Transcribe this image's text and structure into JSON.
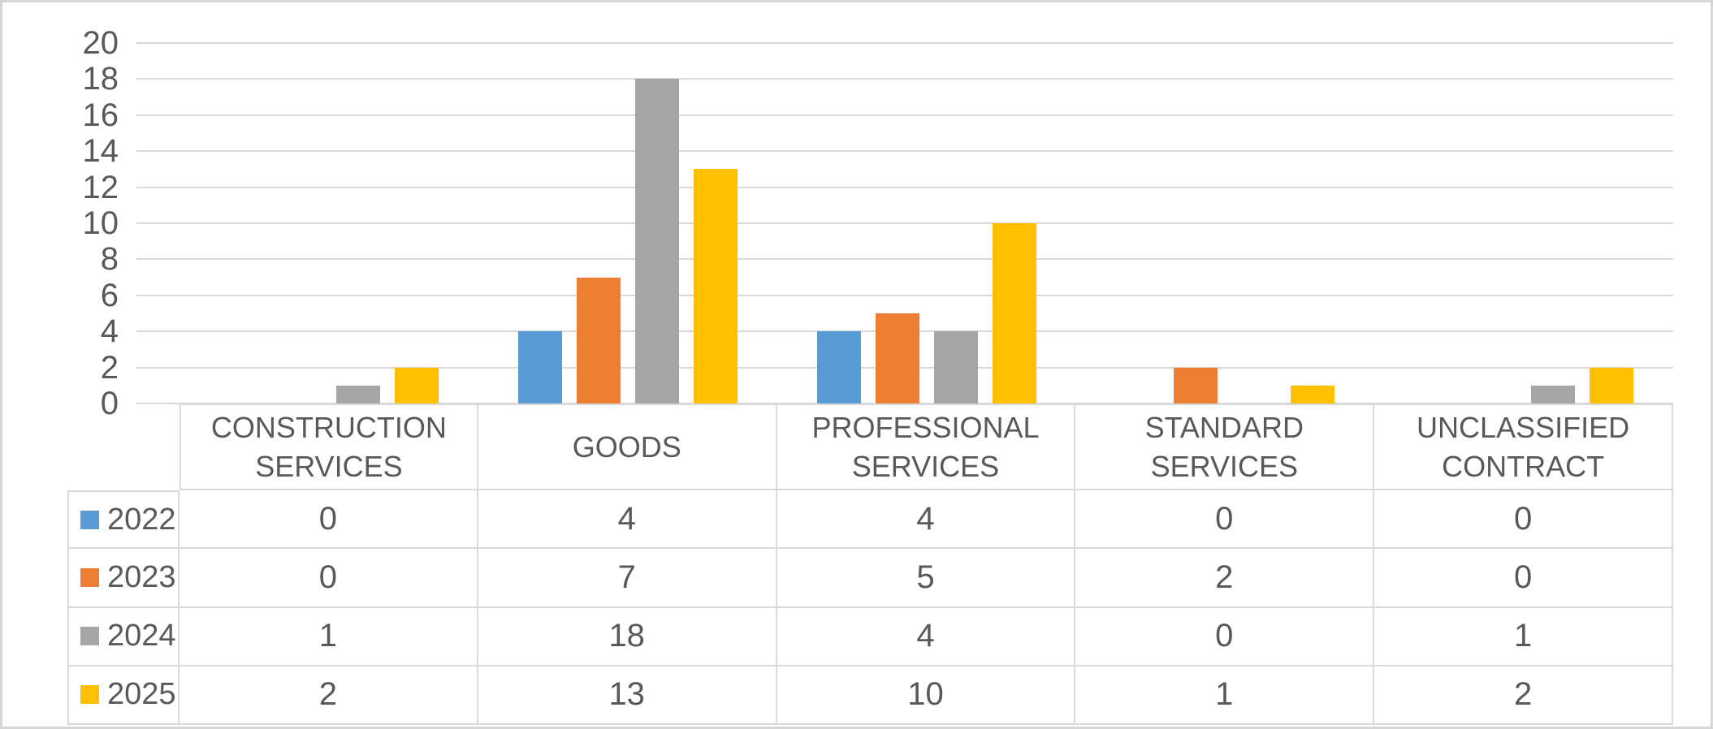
{
  "chart_data": {
    "type": "bar",
    "title": "",
    "xlabel": "",
    "ylabel": "",
    "categories": [
      "CONSTRUCTION SERVICES",
      "GOODS",
      "PROFESSIONAL SERVICES",
      "STANDARD SERVICES",
      "UNCLASSIFIED CONTRACT"
    ],
    "series": [
      {
        "name": "2022",
        "color": "#5B9BD5",
        "values": [
          0,
          4,
          4,
          0,
          0
        ]
      },
      {
        "name": "2023",
        "color": "#ED7D31",
        "values": [
          0,
          7,
          5,
          2,
          0
        ]
      },
      {
        "name": "2024",
        "color": "#A5A5A5",
        "values": [
          1,
          18,
          4,
          0,
          1
        ]
      },
      {
        "name": "2025",
        "color": "#FFC000",
        "values": [
          2,
          13,
          10,
          1,
          2
        ]
      }
    ],
    "ylim": [
      0,
      20
    ],
    "yticks": [
      0,
      2,
      4,
      6,
      8,
      10,
      12,
      14,
      16,
      18,
      20
    ],
    "grid": true,
    "legend_position": "data-table-left-column"
  },
  "data_table": {
    "row_headers": [
      "2022",
      "2023",
      "2024",
      "2025"
    ],
    "column_headers": [
      "CONSTRUCTION SERVICES",
      "GOODS",
      "PROFESSIONAL SERVICES",
      "STANDARD SERVICES",
      "UNCLASSIFIED CONTRACT"
    ],
    "rows": [
      [
        0,
        4,
        4,
        0,
        0
      ],
      [
        0,
        7,
        5,
        2,
        0
      ],
      [
        1,
        18,
        4,
        0,
        1
      ],
      [
        2,
        13,
        10,
        1,
        2
      ]
    ]
  },
  "colors": {
    "axis_text": "#595959",
    "gridline": "#D9D9D9",
    "table_border": "#D9D9D9",
    "outer_border": "#D6D6D6",
    "background": "#FFFFFF"
  }
}
